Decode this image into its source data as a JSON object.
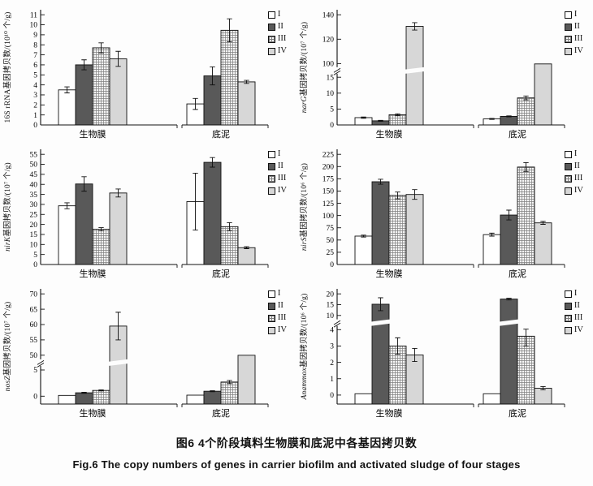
{
  "figure": {
    "caption_zh": "图6  4个阶段填料生物膜和底泥中各基因拷贝数",
    "caption_en": "Fig.6  The copy numbers of genes in carrier biofilm and activated sludge of four stages"
  },
  "colors": {
    "bar_I": "#ffffff",
    "bar_II": "#595959",
    "bar_III_bg": "#f6f6f6",
    "bar_III_hatch": "#7f7f7f",
    "bar_IV": "#d7d7d7",
    "axis": "#111111"
  },
  "legend": {
    "items": [
      {
        "label": "I",
        "swatch": "open-square"
      },
      {
        "label": "II",
        "swatch": "dark-square"
      },
      {
        "label": "III",
        "swatch": "hatch-square"
      },
      {
        "label": "IV",
        "swatch": "light-square"
      }
    ]
  },
  "categories": [
    "生物膜",
    "底泥"
  ],
  "chart_data": [
    {
      "type": "bar",
      "gene": "16S rRNA",
      "ylabel_prefix": "16S rRNA",
      "ylabel_prefix_italic": "",
      "ylabel_rest": "基因拷贝数/(10¹⁰ 个/g)",
      "ylim": [
        0,
        11
      ],
      "yticks": [
        0,
        1,
        2,
        3,
        4,
        5,
        6,
        7,
        8,
        9,
        10,
        11
      ],
      "segments": [
        {
          "v0": 0,
          "v1": 11,
          "f0": 0,
          "f1": 0.97
        }
      ],
      "break_f": null,
      "groups": [
        {
          "category": "生物膜",
          "values": [
            3.5,
            6.0,
            7.7,
            6.6
          ],
          "errors": [
            0.3,
            0.5,
            0.5,
            0.75
          ]
        },
        {
          "category": "底泥",
          "values": [
            2.1,
            4.9,
            9.45,
            4.3
          ],
          "errors": [
            0.55,
            0.9,
            1.15,
            0.15
          ]
        }
      ]
    },
    {
      "type": "bar",
      "gene": "narG",
      "ylabel_prefix": "",
      "ylabel_prefix_italic": "narG",
      "ylabel_rest": "基因拷贝数/(10⁷ 个/g)",
      "ylim": [
        0,
        140
      ],
      "yticks": [
        0,
        5,
        10,
        15,
        100,
        120,
        140
      ],
      "segments": [
        {
          "v0": 0,
          "v1": 15,
          "f0": 0,
          "f1": 0.42
        },
        {
          "v0": 100,
          "v1": 140,
          "f0": 0.54,
          "f1": 0.97
        }
      ],
      "break_f": 0.48,
      "groups": [
        {
          "category": "生物膜",
          "values": [
            2.3,
            1.3,
            3.2,
            130.5
          ],
          "errors": [
            0.2,
            0.15,
            0.3,
            3
          ]
        },
        {
          "category": "底泥",
          "values": [
            1.9,
            2.7,
            8.5,
            98
          ],
          "errors": [
            0.15,
            0.15,
            0.6,
            0
          ]
        }
      ]
    },
    {
      "type": "bar",
      "gene": "nirK",
      "ylabel_prefix": "",
      "ylabel_prefix_italic": "nirK",
      "ylabel_rest": "基因拷贝数/(10⁷ 个/g)",
      "ylim": [
        0,
        55
      ],
      "yticks": [
        0,
        5,
        10,
        15,
        20,
        25,
        30,
        35,
        40,
        45,
        50,
        55
      ],
      "segments": [
        {
          "v0": 0,
          "v1": 55,
          "f0": 0,
          "f1": 0.97
        }
      ],
      "break_f": null,
      "groups": [
        {
          "category": "生物膜",
          "values": [
            29.3,
            40.2,
            17.6,
            35.7
          ],
          "errors": [
            1.5,
            3.6,
            0.8,
            2
          ]
        },
        {
          "category": "底泥",
          "values": [
            31.4,
            51.0,
            18.9,
            8.4
          ],
          "errors": [
            14.2,
            2.4,
            2,
            0.5
          ]
        }
      ]
    },
    {
      "type": "bar",
      "gene": "nirS",
      "ylabel_prefix": "",
      "ylabel_prefix_italic": "nirS",
      "ylabel_rest": "基因拷贝数/(10⁶ 个/g)",
      "ylim": [
        0,
        225
      ],
      "yticks": [
        0,
        25,
        50,
        75,
        100,
        125,
        150,
        175,
        200,
        225
      ],
      "segments": [
        {
          "v0": 0,
          "v1": 225,
          "f0": 0,
          "f1": 0.97
        }
      ],
      "break_f": null,
      "groups": [
        {
          "category": "生物膜",
          "values": [
            58,
            169,
            141,
            143
          ],
          "errors": [
            2,
            5,
            7,
            10
          ]
        },
        {
          "category": "底泥",
          "values": [
            61,
            101,
            199,
            85
          ],
          "errors": [
            3,
            10,
            9,
            3
          ]
        }
      ]
    },
    {
      "type": "bar",
      "gene": "nosZ",
      "ylabel_prefix": "",
      "ylabel_prefix_italic": "nosZ",
      "ylabel_rest": "基因拷贝数/(10⁷ 个/g)",
      "ylim": [
        0,
        70
      ],
      "yticks": [
        0,
        5,
        50,
        55,
        60,
        65,
        70
      ],
      "segments": [
        {
          "v0": -1.5,
          "v1": 5,
          "f0": 0,
          "f1": 0.3
        },
        {
          "v0": 50,
          "v1": 70,
          "f0": 0.43,
          "f1": 0.97
        }
      ],
      "break_f": 0.365,
      "groups": [
        {
          "category": "生物膜",
          "values": [
            0.15,
            0.65,
            1.1,
            59.5
          ],
          "errors": [
            0,
            0.1,
            0.1,
            4.5
          ]
        },
        {
          "category": "底泥",
          "values": [
            0.2,
            0.95,
            2.7,
            49.8
          ],
          "errors": [
            0,
            0.1,
            0.3,
            0
          ]
        }
      ]
    },
    {
      "type": "bar",
      "gene": "Anammox",
      "ylabel_prefix": "",
      "ylabel_prefix_italic": "Anammox",
      "ylabel_rest": "基因拷贝数/(10⁶ 个/g)",
      "ylim": [
        0,
        20
      ],
      "yticks": [
        0,
        1,
        2,
        3,
        4,
        10,
        15,
        20
      ],
      "segments": [
        {
          "v0": -0.55,
          "v1": 4,
          "f0": 0,
          "f1": 0.655
        },
        {
          "v0": 10,
          "v1": 20,
          "f0": 0.78,
          "f1": 0.97
        }
      ],
      "break_f": 0.717,
      "groups": [
        {
          "category": "生物膜",
          "values": [
            0.08,
            15.2,
            3.0,
            2.45
          ],
          "errors": [
            0,
            3,
            0.5,
            0.4
          ]
        },
        {
          "category": "底泥",
          "values": [
            0.08,
            17.6,
            3.6,
            0.42
          ],
          "errors": [
            0,
            0.4,
            0.6,
            0.1
          ]
        }
      ]
    }
  ]
}
